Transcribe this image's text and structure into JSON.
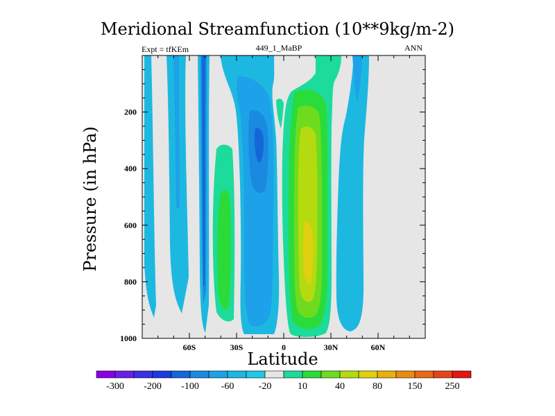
{
  "chart_data": {
    "type": "contour",
    "title": "Meridional Streamfunction (10**9kg/m-2)",
    "left_label": "Expt = tfKEm",
    "center_label": "449_1_MaBP",
    "right_label": "ANN",
    "xlabel": "Latitude",
    "ylabel": "Pressure (in hPa)",
    "xlim": [
      -90,
      90
    ],
    "ylim": [
      1000,
      0
    ],
    "x_ticks": [
      {
        "value": -60,
        "label": "60S"
      },
      {
        "value": -30,
        "label": "30S"
      },
      {
        "value": 0,
        "label": "0"
      },
      {
        "value": 30,
        "label": "30N"
      },
      {
        "value": 60,
        "label": "60N"
      }
    ],
    "y_ticks": [
      {
        "value": 200,
        "label": "200"
      },
      {
        "value": 400,
        "label": "400"
      },
      {
        "value": 600,
        "label": "600"
      },
      {
        "value": 800,
        "label": "800"
      },
      {
        "value": 1000,
        "label": "1000"
      }
    ],
    "colorbar": {
      "levels": [
        "-300",
        "-200",
        "-100",
        "-60",
        "-20",
        "10",
        "40",
        "80",
        "150",
        "250"
      ],
      "colors": [
        "#8A00E6",
        "#6A1FE6",
        "#3C2FE8",
        "#1A3BE0",
        "#1467DA",
        "#1A8AE0",
        "#1DA1E8",
        "#1DB8E0",
        "#1FC8E6",
        "#E6E6E6",
        "#1DDB9A",
        "#2BDB3A",
        "#6FDB1F",
        "#B5DB10",
        "#E0D010",
        "#E8B010",
        "#E88C10",
        "#E8681A",
        "#E84418",
        "#E01810"
      ]
    },
    "features": [
      {
        "kind": "negative",
        "lat": [
          -88,
          -82
        ],
        "p": [
          0,
          930
        ],
        "max": "-20"
      },
      {
        "kind": "negative",
        "lat": [
          -70,
          -63
        ],
        "p": [
          0,
          900
        ],
        "max": "-20"
      },
      {
        "kind": "negative",
        "lat": [
          -53,
          -49
        ],
        "p": [
          0,
          970
        ],
        "max": "-100"
      },
      {
        "kind": "positive",
        "lat": [
          -45,
          -33
        ],
        "p": [
          310,
          940
        ],
        "max": "40"
      },
      {
        "kind": "negative",
        "lat": [
          -27,
          -2
        ],
        "p": [
          0,
          980
        ],
        "max": "-60"
      },
      {
        "kind": "positive",
        "lat": [
          2,
          32
        ],
        "p": [
          0,
          990
        ],
        "max": "80"
      },
      {
        "kind": "negative",
        "lat": [
          34,
          49
        ],
        "p": [
          0,
          960
        ],
        "max": "-20"
      }
    ]
  }
}
